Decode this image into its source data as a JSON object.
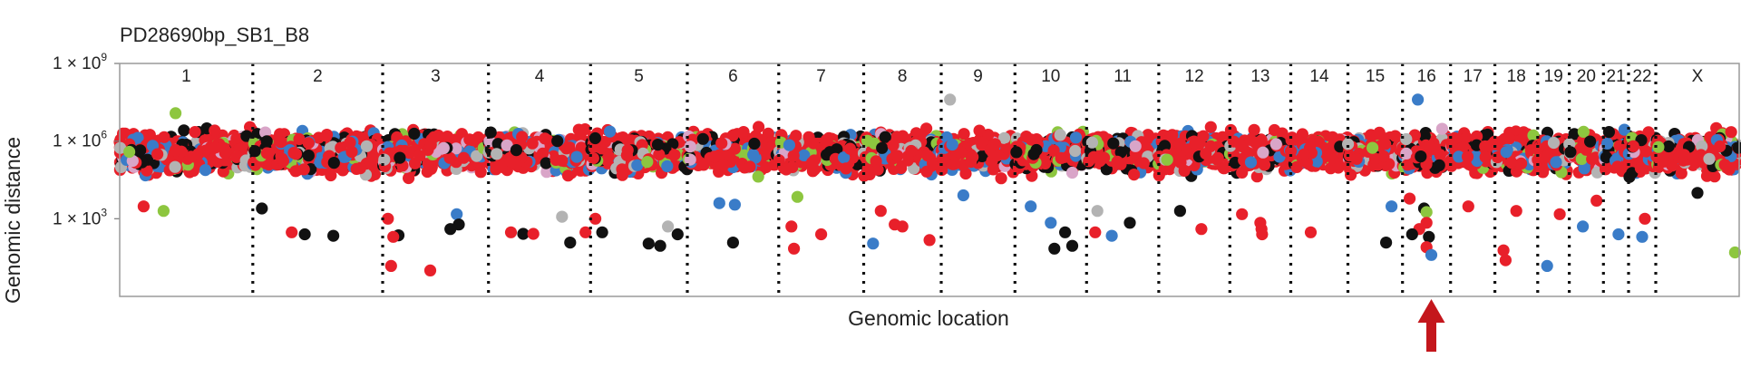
{
  "chart_data": {
    "type": "scatter",
    "title": "PD28690bp_SB1_B8",
    "xlabel": "Genomic location",
    "ylabel": "Genomic distance",
    "yscale": "log",
    "ylim": [
      1,
      1000000000
    ],
    "yticks": [
      {
        "value": 1000,
        "base": "1 × 10",
        "exp": "3"
      },
      {
        "value": 1000000,
        "base": "1 × 10",
        "exp": "6"
      },
      {
        "value": 1000000000,
        "base": "1 × 10",
        "exp": "9"
      }
    ],
    "chromosomes": [
      "1",
      "2",
      "3",
      "4",
      "5",
      "6",
      "7",
      "8",
      "9",
      "10",
      "11",
      "12",
      "13",
      "14",
      "15",
      "16",
      "17",
      "18",
      "19",
      "20",
      "21",
      "22",
      "X"
    ],
    "chromosome_widths": [
      249,
      243,
      198,
      191,
      181,
      171,
      159,
      145,
      138,
      134,
      135,
      133,
      114,
      107,
      102,
      90,
      83,
      80,
      59,
      64,
      47,
      51,
      156
    ],
    "mutation_classes": [
      {
        "color": "#e8202a",
        "weight": 0.62
      },
      {
        "color": "#111111",
        "weight": 0.12
      },
      {
        "color": "#3a7cc8",
        "weight": 0.1
      },
      {
        "color": "#8dc63f",
        "weight": 0.06
      },
      {
        "color": "#b3b3b3",
        "weight": 0.06
      },
      {
        "color": "#d9a5c8",
        "weight": 0.04
      }
    ],
    "highlighted_points": [
      {
        "chrom": "1",
        "pos": 0.42,
        "y": 12000000,
        "color": "#8dc63f"
      },
      {
        "chrom": "1",
        "pos": 0.18,
        "y": 3000,
        "color": "#e8202a"
      },
      {
        "chrom": "1",
        "pos": 0.33,
        "y": 2000,
        "color": "#8dc63f"
      },
      {
        "chrom": "2",
        "pos": 0.07,
        "y": 2500,
        "color": "#111111"
      },
      {
        "chrom": "2",
        "pos": 0.3,
        "y": 300,
        "color": "#e8202a"
      },
      {
        "chrom": "2",
        "pos": 0.4,
        "y": 250,
        "color": "#111111"
      },
      {
        "chrom": "2",
        "pos": 0.62,
        "y": 220,
        "color": "#111111"
      },
      {
        "chrom": "3",
        "pos": 0.05,
        "y": 1000,
        "color": "#e8202a"
      },
      {
        "chrom": "3",
        "pos": 0.08,
        "y": 15,
        "color": "#e8202a"
      },
      {
        "chrom": "3",
        "pos": 0.15,
        "y": 230,
        "color": "#111111"
      },
      {
        "chrom": "3",
        "pos": 0.1,
        "y": 200,
        "color": "#e8202a"
      },
      {
        "chrom": "3",
        "pos": 0.45,
        "y": 10,
        "color": "#e8202a"
      },
      {
        "chrom": "3",
        "pos": 0.7,
        "y": 1500,
        "color": "#3a7cc8"
      },
      {
        "chrom": "3",
        "pos": 0.72,
        "y": 600,
        "color": "#111111"
      },
      {
        "chrom": "3",
        "pos": 0.64,
        "y": 400,
        "color": "#111111"
      },
      {
        "chrom": "4",
        "pos": 0.22,
        "y": 300,
        "color": "#e8202a"
      },
      {
        "chrom": "4",
        "pos": 0.34,
        "y": 260,
        "color": "#111111"
      },
      {
        "chrom": "4",
        "pos": 0.44,
        "y": 260,
        "color": "#e8202a"
      },
      {
        "chrom": "4",
        "pos": 0.8,
        "y": 120,
        "color": "#111111"
      },
      {
        "chrom": "4",
        "pos": 0.72,
        "y": 1200,
        "color": "#b3b3b3"
      },
      {
        "chrom": "4",
        "pos": 0.95,
        "y": 300,
        "color": "#e8202a"
      },
      {
        "chrom": "5",
        "pos": 0.05,
        "y": 1000,
        "color": "#e8202a"
      },
      {
        "chrom": "5",
        "pos": 0.12,
        "y": 300,
        "color": "#111111"
      },
      {
        "chrom": "5",
        "pos": 0.6,
        "y": 110,
        "color": "#111111"
      },
      {
        "chrom": "5",
        "pos": 0.72,
        "y": 90,
        "color": "#111111"
      },
      {
        "chrom": "5",
        "pos": 0.8,
        "y": 500,
        "color": "#b3b3b3"
      },
      {
        "chrom": "5",
        "pos": 0.9,
        "y": 250,
        "color": "#111111"
      },
      {
        "chrom": "6",
        "pos": 0.35,
        "y": 4000,
        "color": "#3a7cc8"
      },
      {
        "chrom": "6",
        "pos": 0.5,
        "y": 120,
        "color": "#111111"
      },
      {
        "chrom": "6",
        "pos": 0.52,
        "y": 3500,
        "color": "#3a7cc8"
      },
      {
        "chrom": "7",
        "pos": 0.15,
        "y": 500,
        "color": "#e8202a"
      },
      {
        "chrom": "7",
        "pos": 0.18,
        "y": 70,
        "color": "#e8202a"
      },
      {
        "chrom": "7",
        "pos": 0.5,
        "y": 250,
        "color": "#e8202a"
      },
      {
        "chrom": "7",
        "pos": 0.22,
        "y": 7000,
        "color": "#8dc63f"
      },
      {
        "chrom": "8",
        "pos": 0.12,
        "y": 110,
        "color": "#3a7cc8"
      },
      {
        "chrom": "8",
        "pos": 0.22,
        "y": 2000,
        "color": "#e8202a"
      },
      {
        "chrom": "8",
        "pos": 0.4,
        "y": 600,
        "color": "#e8202a"
      },
      {
        "chrom": "8",
        "pos": 0.5,
        "y": 500,
        "color": "#e8202a"
      },
      {
        "chrom": "8",
        "pos": 0.85,
        "y": 150,
        "color": "#e8202a"
      },
      {
        "chrom": "9",
        "pos": 0.12,
        "y": 40000000,
        "color": "#b3b3b3"
      },
      {
        "chrom": "9",
        "pos": 0.3,
        "y": 8000,
        "color": "#3a7cc8"
      },
      {
        "chrom": "10",
        "pos": 0.22,
        "y": 3000,
        "color": "#3a7cc8"
      },
      {
        "chrom": "10",
        "pos": 0.5,
        "y": 700,
        "color": "#3a7cc8"
      },
      {
        "chrom": "10",
        "pos": 0.7,
        "y": 300,
        "color": "#111111"
      },
      {
        "chrom": "10",
        "pos": 0.55,
        "y": 70,
        "color": "#111111"
      },
      {
        "chrom": "10",
        "pos": 0.8,
        "y": 90,
        "color": "#111111"
      },
      {
        "chrom": "11",
        "pos": 0.15,
        "y": 2000,
        "color": "#b3b3b3"
      },
      {
        "chrom": "11",
        "pos": 0.12,
        "y": 300,
        "color": "#e8202a"
      },
      {
        "chrom": "11",
        "pos": 0.35,
        "y": 220,
        "color": "#3a7cc8"
      },
      {
        "chrom": "11",
        "pos": 0.6,
        "y": 700,
        "color": "#111111"
      },
      {
        "chrom": "12",
        "pos": 0.3,
        "y": 2000,
        "color": "#111111"
      },
      {
        "chrom": "12",
        "pos": 0.6,
        "y": 400,
        "color": "#e8202a"
      },
      {
        "chrom": "13",
        "pos": 0.2,
        "y": 1500,
        "color": "#e8202a"
      },
      {
        "chrom": "13",
        "pos": 0.5,
        "y": 700,
        "color": "#e8202a"
      },
      {
        "chrom": "13",
        "pos": 0.52,
        "y": 400,
        "color": "#e8202a"
      },
      {
        "chrom": "13",
        "pos": 0.53,
        "y": 250,
        "color": "#e8202a"
      },
      {
        "chrom": "14",
        "pos": 0.35,
        "y": 300,
        "color": "#e8202a"
      },
      {
        "chrom": "15",
        "pos": 0.7,
        "y": 120,
        "color": "#111111"
      },
      {
        "chrom": "15",
        "pos": 0.8,
        "y": 3000,
        "color": "#3a7cc8"
      },
      {
        "chrom": "16",
        "pos": 0.32,
        "y": 40000000,
        "color": "#3a7cc8"
      },
      {
        "chrom": "16",
        "pos": 0.15,
        "y": 6000,
        "color": "#e8202a"
      },
      {
        "chrom": "16",
        "pos": 0.45,
        "y": 2500,
        "color": "#111111"
      },
      {
        "chrom": "16",
        "pos": 0.5,
        "y": 1800,
        "color": "#8dc63f"
      },
      {
        "chrom": "16",
        "pos": 0.5,
        "y": 700,
        "color": "#e8202a"
      },
      {
        "chrom": "16",
        "pos": 0.35,
        "y": 400,
        "color": "#e8202a"
      },
      {
        "chrom": "16",
        "pos": 0.2,
        "y": 250,
        "color": "#111111"
      },
      {
        "chrom": "16",
        "pos": 0.55,
        "y": 200,
        "color": "#111111"
      },
      {
        "chrom": "16",
        "pos": 0.5,
        "y": 80,
        "color": "#e8202a"
      },
      {
        "chrom": "16",
        "pos": 0.6,
        "y": 40,
        "color": "#3a7cc8"
      },
      {
        "chrom": "17",
        "pos": 0.4,
        "y": 3000,
        "color": "#e8202a"
      },
      {
        "chrom": "18",
        "pos": 0.2,
        "y": 60,
        "color": "#e8202a"
      },
      {
        "chrom": "18",
        "pos": 0.25,
        "y": 25,
        "color": "#e8202a"
      },
      {
        "chrom": "18",
        "pos": 0.5,
        "y": 2000,
        "color": "#e8202a"
      },
      {
        "chrom": "19",
        "pos": 0.3,
        "y": 15,
        "color": "#3a7cc8"
      },
      {
        "chrom": "19",
        "pos": 0.7,
        "y": 1500,
        "color": "#e8202a"
      },
      {
        "chrom": "20",
        "pos": 0.4,
        "y": 500,
        "color": "#3a7cc8"
      },
      {
        "chrom": "20",
        "pos": 0.8,
        "y": 5000,
        "color": "#e8202a"
      },
      {
        "chrom": "21",
        "pos": 0.6,
        "y": 250,
        "color": "#3a7cc8"
      },
      {
        "chrom": "22",
        "pos": 0.5,
        "y": 200,
        "color": "#3a7cc8"
      },
      {
        "chrom": "22",
        "pos": 0.6,
        "y": 1000,
        "color": "#e8202a"
      },
      {
        "chrom": "X",
        "pos": 0.5,
        "y": 10000,
        "color": "#111111"
      },
      {
        "chrom": "X",
        "pos": 0.95,
        "y": 50,
        "color": "#8dc63f"
      }
    ],
    "annotation": {
      "type": "arrow",
      "chrom": "16",
      "pos": 0.6,
      "color": "#c4161c"
    }
  }
}
